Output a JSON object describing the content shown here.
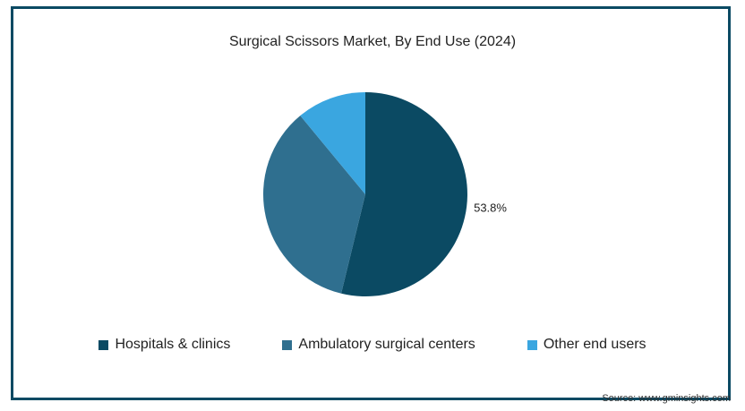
{
  "chart_data": {
    "type": "pie",
    "title": "Surgical Scissors Market, By End Use (2024)",
    "slices": [
      {
        "name": "Hospitals & clinics",
        "value": 53.8,
        "color": "#0b4a63",
        "label": "53.8%"
      },
      {
        "name": "Ambulatory surgical centers",
        "value": 35.2,
        "color": "#2f6f8f",
        "label": ""
      },
      {
        "name": "Other end users",
        "value": 11.0,
        "color": "#3aa6e0",
        "label": ""
      }
    ],
    "legend_position": "bottom"
  },
  "source": "Source: www.gminsights.com"
}
